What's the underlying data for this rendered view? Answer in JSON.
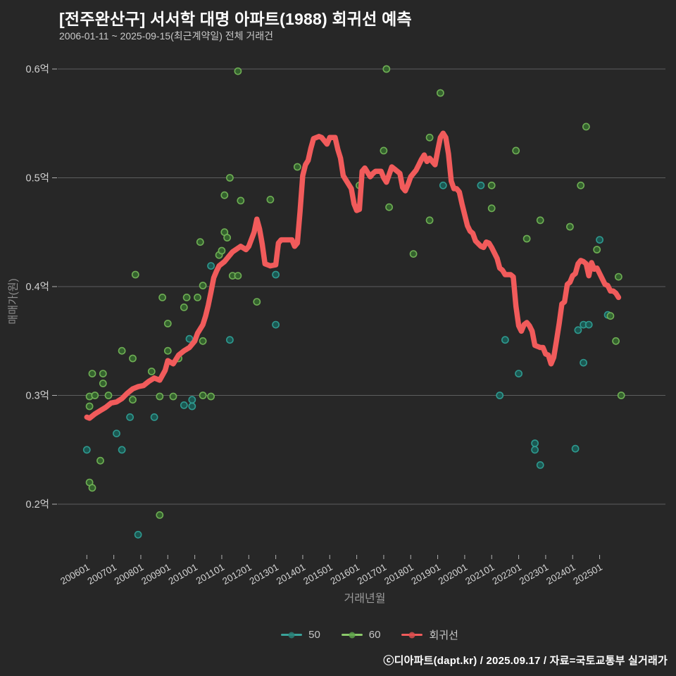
{
  "header": {
    "title": "[전주완산구] 서서학 대명 아파트(1988) 회귀선 예측",
    "subtitle": "2006-01-11 ~ 2025-09-15(최근계약일) 전체 거래건"
  },
  "axes": {
    "x_title": "거래년월",
    "y_title": "매매가(원)"
  },
  "legend": {
    "items": [
      {
        "label": "50",
        "color": "#3aa39a",
        "dot": "#2a8077"
      },
      {
        "label": "60",
        "color": "#8bc96a",
        "dot": "#5fa34b"
      },
      {
        "label": "회귀선",
        "color": "#f15b5b",
        "dot": "#d94f4f"
      }
    ]
  },
  "footer": {
    "credit": "ⓒ디아파트(dapt.kr) / 2025.09.17 / 자료=국토교통부 실거래가"
  },
  "chart_data": {
    "type": "scatter",
    "title": "[전주완산구] 서서학 대명 아파트(1988) 회귀선 예측",
    "xlabel": "거래년월",
    "ylabel": "매매가(원)",
    "grid": true,
    "legend_position": "bottom",
    "background": "#272727",
    "grid_color": "#8a8b8e",
    "xlim": [
      2005.85,
      2027.4
    ],
    "ylim": [
      0.154,
      0.605
    ],
    "x_ticks": {
      "labels": [
        "200601",
        "200701",
        "200801",
        "200901",
        "201001",
        "201101",
        "201201",
        "201301",
        "201401",
        "201501",
        "201601",
        "201701",
        "201801",
        "201901",
        "202001",
        "202101",
        "202201",
        "202301",
        "202401",
        "202501"
      ],
      "years": [
        2006,
        2007,
        2008,
        2009,
        2010,
        2011,
        2012,
        2013,
        2014,
        2015,
        2016,
        2017,
        2018,
        2019,
        2020,
        2021,
        2022,
        2023,
        2024,
        2025
      ]
    },
    "y_ticks": {
      "labels": [
        "0.6억",
        "0.5억",
        "0.4억",
        "0.3억",
        "0.2억"
      ],
      "values": [
        0.6,
        0.5,
        0.4,
        0.3,
        0.2
      ]
    },
    "series": [
      {
        "name": "50",
        "kind": "scatter",
        "stroke": "#2f9e94",
        "fill": "#1b5d56",
        "points": [
          [
            2006.0,
            0.25
          ],
          [
            2007.1,
            0.265
          ],
          [
            2007.3,
            0.25
          ],
          [
            2007.6,
            0.28
          ],
          [
            2007.9,
            0.172
          ],
          [
            2008.5,
            0.28
          ],
          [
            2009.6,
            0.291
          ],
          [
            2009.8,
            0.352
          ],
          [
            2009.9,
            0.296
          ],
          [
            2009.9,
            0.29
          ],
          [
            2010.6,
            0.419
          ],
          [
            2011.3,
            0.351
          ],
          [
            2013.0,
            0.411
          ],
          [
            2013.0,
            0.365
          ],
          [
            2019.2,
            0.493
          ],
          [
            2020.6,
            0.493
          ],
          [
            2021.3,
            0.3
          ],
          [
            2021.5,
            0.351
          ],
          [
            2022.0,
            0.32
          ],
          [
            2022.6,
            0.256
          ],
          [
            2022.6,
            0.25
          ],
          [
            2022.8,
            0.236
          ],
          [
            2024.1,
            0.251
          ],
          [
            2024.2,
            0.36
          ],
          [
            2024.4,
            0.33
          ],
          [
            2024.4,
            0.365
          ],
          [
            2024.6,
            0.365
          ],
          [
            2025.0,
            0.443
          ],
          [
            2025.3,
            0.374
          ]
        ]
      },
      {
        "name": "60",
        "kind": "scatter",
        "stroke": "#72b356",
        "fill": "#35682f",
        "points": [
          [
            2006.1,
            0.299
          ],
          [
            2006.1,
            0.29
          ],
          [
            2006.1,
            0.22
          ],
          [
            2006.2,
            0.215
          ],
          [
            2006.2,
            0.32
          ],
          [
            2006.3,
            0.3
          ],
          [
            2006.5,
            0.24
          ],
          [
            2006.6,
            0.311
          ],
          [
            2006.6,
            0.32
          ],
          [
            2006.8,
            0.3
          ],
          [
            2007.3,
            0.341
          ],
          [
            2007.7,
            0.296
          ],
          [
            2007.7,
            0.334
          ],
          [
            2007.8,
            0.411
          ],
          [
            2008.4,
            0.322
          ],
          [
            2008.7,
            0.19
          ],
          [
            2008.7,
            0.299
          ],
          [
            2008.8,
            0.39
          ],
          [
            2009.0,
            0.341
          ],
          [
            2009.0,
            0.366
          ],
          [
            2009.2,
            0.299
          ],
          [
            2009.4,
            0.334
          ],
          [
            2009.6,
            0.381
          ],
          [
            2009.7,
            0.39
          ],
          [
            2010.1,
            0.39
          ],
          [
            2010.2,
            0.441
          ],
          [
            2010.3,
            0.3
          ],
          [
            2010.3,
            0.401
          ],
          [
            2010.3,
            0.35
          ],
          [
            2010.6,
            0.299
          ],
          [
            2010.9,
            0.429
          ],
          [
            2011.0,
            0.433
          ],
          [
            2011.1,
            0.484
          ],
          [
            2011.1,
            0.45
          ],
          [
            2011.2,
            0.445
          ],
          [
            2011.3,
            0.5
          ],
          [
            2011.4,
            0.41
          ],
          [
            2011.6,
            0.41
          ],
          [
            2011.6,
            0.598
          ],
          [
            2011.7,
            0.479
          ],
          [
            2012.3,
            0.386
          ],
          [
            2012.8,
            0.48
          ],
          [
            2013.8,
            0.51
          ],
          [
            2016.1,
            0.493
          ],
          [
            2017.0,
            0.525
          ],
          [
            2017.1,
            0.6
          ],
          [
            2017.2,
            0.473
          ],
          [
            2018.1,
            0.43
          ],
          [
            2018.7,
            0.537
          ],
          [
            2018.7,
            0.461
          ],
          [
            2019.1,
            0.578
          ],
          [
            2021.0,
            0.493
          ],
          [
            2021.0,
            0.472
          ],
          [
            2021.9,
            0.525
          ],
          [
            2022.3,
            0.444
          ],
          [
            2022.8,
            0.461
          ],
          [
            2023.9,
            0.455
          ],
          [
            2024.3,
            0.493
          ],
          [
            2024.5,
            0.547
          ],
          [
            2024.9,
            0.434
          ],
          [
            2025.4,
            0.373
          ],
          [
            2025.6,
            0.35
          ],
          [
            2025.7,
            0.409
          ],
          [
            2025.8,
            0.3
          ]
        ]
      },
      {
        "name": "회귀선",
        "kind": "line",
        "stroke": "#f15b5b",
        "points": [
          [
            2006.0,
            0.28
          ],
          [
            2006.1,
            0.279
          ],
          [
            2006.3,
            0.283
          ],
          [
            2006.5,
            0.286
          ],
          [
            2006.7,
            0.289
          ],
          [
            2006.9,
            0.293
          ],
          [
            2007.1,
            0.294
          ],
          [
            2007.3,
            0.297
          ],
          [
            2007.5,
            0.302
          ],
          [
            2007.7,
            0.306
          ],
          [
            2007.9,
            0.308
          ],
          [
            2008.1,
            0.309
          ],
          [
            2008.3,
            0.313
          ],
          [
            2008.5,
            0.316
          ],
          [
            2008.7,
            0.314
          ],
          [
            2008.9,
            0.323
          ],
          [
            2009.0,
            0.332
          ],
          [
            2009.2,
            0.329
          ],
          [
            2009.4,
            0.337
          ],
          [
            2009.6,
            0.341
          ],
          [
            2009.8,
            0.344
          ],
          [
            2010.0,
            0.35
          ],
          [
            2010.1,
            0.357
          ],
          [
            2010.3,
            0.365
          ],
          [
            2010.4,
            0.373
          ],
          [
            2010.5,
            0.383
          ],
          [
            2010.6,
            0.395
          ],
          [
            2010.7,
            0.408
          ],
          [
            2010.8,
            0.414
          ],
          [
            2010.9,
            0.419
          ],
          [
            2011.1,
            0.423
          ],
          [
            2011.3,
            0.429
          ],
          [
            2011.4,
            0.432
          ],
          [
            2011.7,
            0.437
          ],
          [
            2011.9,
            0.434
          ],
          [
            2012.0,
            0.437
          ],
          [
            2012.2,
            0.45
          ],
          [
            2012.3,
            0.462
          ],
          [
            2012.4,
            0.453
          ],
          [
            2012.5,
            0.439
          ],
          [
            2012.6,
            0.421
          ],
          [
            2012.8,
            0.419
          ],
          [
            2013.0,
            0.42
          ],
          [
            2013.1,
            0.44
          ],
          [
            2013.2,
            0.443
          ],
          [
            2013.4,
            0.443
          ],
          [
            2013.6,
            0.443
          ],
          [
            2013.7,
            0.437
          ],
          [
            2013.8,
            0.44
          ],
          [
            2013.9,
            0.469
          ],
          [
            2014.0,
            0.502
          ],
          [
            2014.1,
            0.512
          ],
          [
            2014.2,
            0.516
          ],
          [
            2014.3,
            0.527
          ],
          [
            2014.4,
            0.536
          ],
          [
            2014.6,
            0.538
          ],
          [
            2014.7,
            0.537
          ],
          [
            2014.9,
            0.531
          ],
          [
            2015.0,
            0.537
          ],
          [
            2015.2,
            0.537
          ],
          [
            2015.3,
            0.526
          ],
          [
            2015.4,
            0.518
          ],
          [
            2015.5,
            0.502
          ],
          [
            2015.7,
            0.494
          ],
          [
            2015.8,
            0.49
          ],
          [
            2015.9,
            0.476
          ],
          [
            2016.0,
            0.47
          ],
          [
            2016.1,
            0.471
          ],
          [
            2016.2,
            0.506
          ],
          [
            2016.3,
            0.509
          ],
          [
            2016.5,
            0.501
          ],
          [
            2016.6,
            0.504
          ],
          [
            2016.7,
            0.506
          ],
          [
            2016.9,
            0.506
          ],
          [
            2017.0,
            0.5
          ],
          [
            2017.1,
            0.496
          ],
          [
            2017.2,
            0.503
          ],
          [
            2017.3,
            0.51
          ],
          [
            2017.4,
            0.508
          ],
          [
            2017.6,
            0.504
          ],
          [
            2017.7,
            0.491
          ],
          [
            2017.8,
            0.488
          ],
          [
            2017.9,
            0.494
          ],
          [
            2018.0,
            0.501
          ],
          [
            2018.2,
            0.507
          ],
          [
            2018.3,
            0.512
          ],
          [
            2018.4,
            0.517
          ],
          [
            2018.5,
            0.521
          ],
          [
            2018.6,
            0.515
          ],
          [
            2018.7,
            0.518
          ],
          [
            2018.8,
            0.515
          ],
          [
            2018.9,
            0.512
          ],
          [
            2019.0,
            0.525
          ],
          [
            2019.1,
            0.537
          ],
          [
            2019.2,
            0.541
          ],
          [
            2019.3,
            0.537
          ],
          [
            2019.4,
            0.522
          ],
          [
            2019.5,
            0.497
          ],
          [
            2019.6,
            0.49
          ],
          [
            2019.7,
            0.49
          ],
          [
            2019.8,
            0.487
          ],
          [
            2019.9,
            0.476
          ],
          [
            2020.1,
            0.456
          ],
          [
            2020.2,
            0.451
          ],
          [
            2020.3,
            0.449
          ],
          [
            2020.4,
            0.442
          ],
          [
            2020.6,
            0.437
          ],
          [
            2020.7,
            0.436
          ],
          [
            2020.8,
            0.441
          ],
          [
            2020.9,
            0.44
          ],
          [
            2021.0,
            0.436
          ],
          [
            2021.2,
            0.426
          ],
          [
            2021.3,
            0.417
          ],
          [
            2021.4,
            0.415
          ],
          [
            2021.5,
            0.411
          ],
          [
            2021.7,
            0.411
          ],
          [
            2021.8,
            0.409
          ],
          [
            2021.9,
            0.382
          ],
          [
            2022.0,
            0.364
          ],
          [
            2022.1,
            0.359
          ],
          [
            2022.2,
            0.365
          ],
          [
            2022.3,
            0.367
          ],
          [
            2022.4,
            0.364
          ],
          [
            2022.5,
            0.359
          ],
          [
            2022.6,
            0.346
          ],
          [
            2022.8,
            0.344
          ],
          [
            2022.9,
            0.344
          ],
          [
            2023.0,
            0.338
          ],
          [
            2023.1,
            0.337
          ],
          [
            2023.2,
            0.329
          ],
          [
            2023.3,
            0.335
          ],
          [
            2023.4,
            0.35
          ],
          [
            2023.5,
            0.366
          ],
          [
            2023.6,
            0.384
          ],
          [
            2023.7,
            0.386
          ],
          [
            2023.8,
            0.402
          ],
          [
            2023.9,
            0.404
          ],
          [
            2024.0,
            0.41
          ],
          [
            2024.1,
            0.412
          ],
          [
            2024.2,
            0.421
          ],
          [
            2024.3,
            0.424
          ],
          [
            2024.4,
            0.423
          ],
          [
            2024.5,
            0.421
          ],
          [
            2024.6,
            0.41
          ],
          [
            2024.7,
            0.422
          ],
          [
            2024.8,
            0.416
          ],
          [
            2024.9,
            0.417
          ],
          [
            2025.0,
            0.412
          ],
          [
            2025.1,
            0.407
          ],
          [
            2025.2,
            0.402
          ],
          [
            2025.3,
            0.401
          ],
          [
            2025.4,
            0.396
          ],
          [
            2025.5,
            0.396
          ],
          [
            2025.6,
            0.394
          ],
          [
            2025.7,
            0.39
          ]
        ]
      }
    ]
  }
}
